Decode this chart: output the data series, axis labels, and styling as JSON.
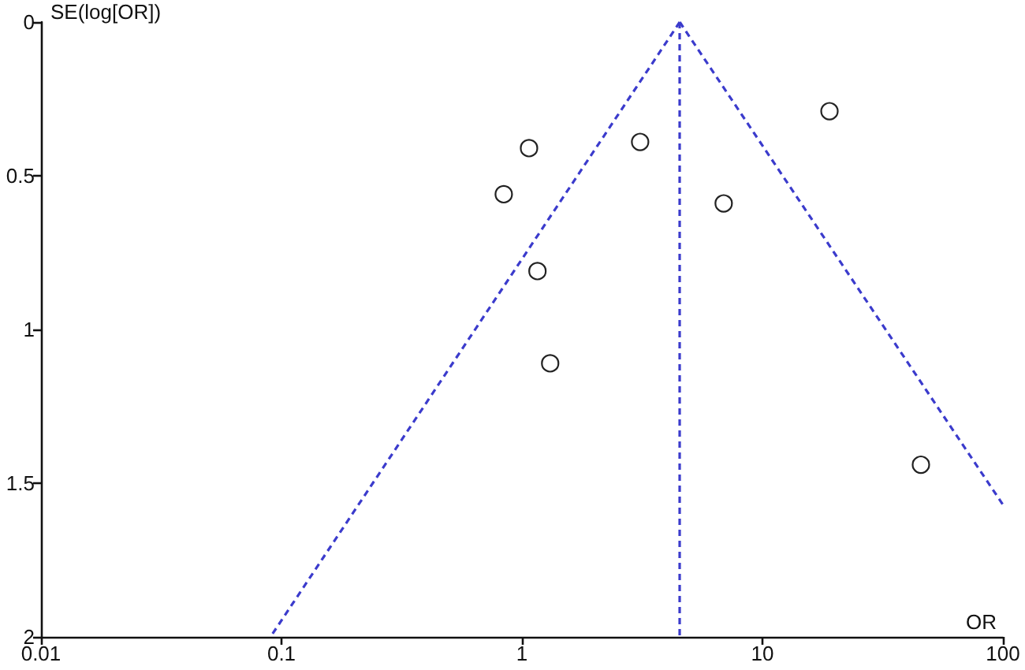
{
  "chart_data": {
    "type": "scatter",
    "xlabel": "OR",
    "ylabel": "SE(log[OR])",
    "log": "x",
    "xlim": [
      0.01,
      100
    ],
    "xticks": [
      0.01,
      0.1,
      1,
      10,
      100
    ],
    "ylim": [
      2,
      0
    ],
    "yticks": [
      0,
      0.5,
      1,
      1.5,
      2
    ],
    "line_style": "dashed",
    "series": [
      {
        "color": "#222222",
        "marker": "circle",
        "x": [
          19,
          6.9,
          3.1,
          1.07,
          0.84,
          1.16,
          1.31,
          45.6
        ],
        "values": [
          0.29,
          0.59,
          0.39,
          0.41,
          0.56,
          0.81,
          1.11,
          1.44
        ]
      },
      {
        "type": "line",
        "marker": "none",
        "color": "#3b3bcc",
        "x": [
          4.53,
          0.09
        ],
        "values": [
          0,
          2
        ]
      },
      {
        "type": "line",
        "marker": "none",
        "color": "#3b3bcc",
        "x": [
          4.53,
          100
        ],
        "values": [
          0,
          1.57
        ]
      }
    ],
    "ref_lines": [
      {
        "axis": "x",
        "value": 4.53,
        "color": "#3b3bcc",
        "line_style": "dashed"
      }
    ]
  }
}
